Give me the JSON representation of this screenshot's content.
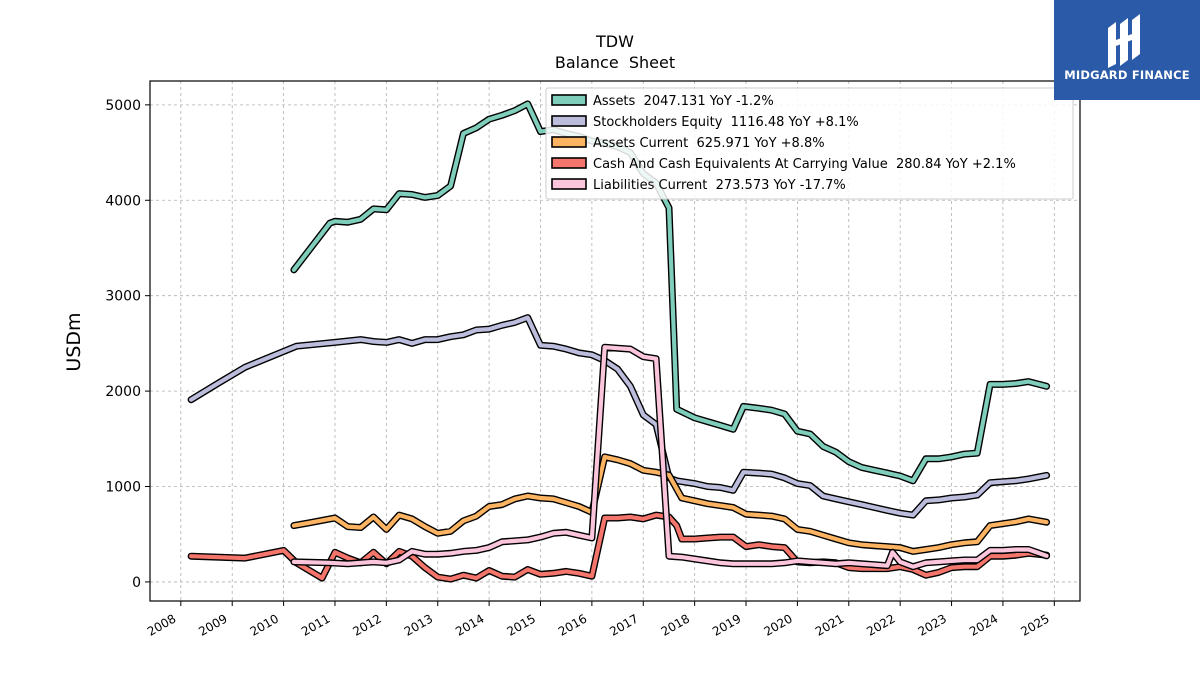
{
  "logo": {
    "text": "MIDGARD FINANCE",
    "color": "#2a5aa8"
  },
  "chart_data": {
    "type": "line",
    "title": "TDW",
    "subtitle": "Balance  Sheet",
    "ylabel": "USDm",
    "xlabel": "",
    "xlim": [
      2007.4,
      2025.5
    ],
    "ylim": [
      -200,
      5250
    ],
    "yticks": [
      0,
      1000,
      2000,
      3000,
      4000,
      5000
    ],
    "xticks": [
      "2008",
      "2009",
      "2010",
      "2011",
      "2012",
      "2013",
      "2014",
      "2015",
      "2016",
      "2017",
      "2018",
      "2019",
      "2020",
      "2021",
      "2022",
      "2023",
      "2024",
      "2025"
    ],
    "grid": true,
    "legend_position": "top-right",
    "series": [
      {
        "name": "Assets",
        "legend": "Assets  2047.131 YoY -1.2%",
        "color": "#7fcdbb",
        "points": [
          [
            2010.2,
            3270
          ],
          [
            2010.9,
            3760
          ],
          [
            2011.0,
            3780
          ],
          [
            2011.25,
            3770
          ],
          [
            2011.5,
            3800
          ],
          [
            2011.75,
            3910
          ],
          [
            2012.0,
            3900
          ],
          [
            2012.25,
            4070
          ],
          [
            2012.5,
            4060
          ],
          [
            2012.75,
            4030
          ],
          [
            2013.0,
            4050
          ],
          [
            2013.25,
            4150
          ],
          [
            2013.5,
            4700
          ],
          [
            2013.75,
            4760
          ],
          [
            2014.0,
            4850
          ],
          [
            2014.25,
            4890
          ],
          [
            2014.5,
            4940
          ],
          [
            2014.75,
            5010
          ],
          [
            2015.0,
            4720
          ],
          [
            2015.25,
            4740
          ],
          [
            2015.5,
            4700
          ],
          [
            2015.75,
            4670
          ],
          [
            2016.0,
            4620
          ],
          [
            2016.25,
            4600
          ],
          [
            2016.5,
            4560
          ],
          [
            2016.75,
            4500
          ],
          [
            2017.0,
            4280
          ],
          [
            2017.25,
            4180
          ],
          [
            2017.5,
            3920
          ],
          [
            2017.65,
            1810
          ],
          [
            2018.0,
            1720
          ],
          [
            2018.25,
            1680
          ],
          [
            2018.5,
            1640
          ],
          [
            2018.75,
            1600
          ],
          [
            2018.95,
            1840
          ],
          [
            2019.25,
            1820
          ],
          [
            2019.5,
            1800
          ],
          [
            2019.75,
            1760
          ],
          [
            2020.0,
            1580
          ],
          [
            2020.25,
            1550
          ],
          [
            2020.5,
            1420
          ],
          [
            2020.75,
            1360
          ],
          [
            2021.0,
            1260
          ],
          [
            2021.25,
            1200
          ],
          [
            2021.5,
            1170
          ],
          [
            2021.75,
            1140
          ],
          [
            2022.0,
            1110
          ],
          [
            2022.25,
            1060
          ],
          [
            2022.5,
            1290
          ],
          [
            2022.75,
            1290
          ],
          [
            2023.0,
            1310
          ],
          [
            2023.25,
            1340
          ],
          [
            2023.5,
            1350
          ],
          [
            2023.75,
            2070
          ],
          [
            2024.0,
            2070
          ],
          [
            2024.25,
            2080
          ],
          [
            2024.5,
            2100
          ],
          [
            2024.85,
            2050
          ]
        ]
      },
      {
        "name": "Stockholders Equity",
        "legend": "Stockholders Equity  1116.48 YoY +8.1%",
        "color": "#bcbddc",
        "points": [
          [
            2008.2,
            1910
          ],
          [
            2008.75,
            2090
          ],
          [
            2009.25,
            2250
          ],
          [
            2010.25,
            2470
          ],
          [
            2011.0,
            2510
          ],
          [
            2011.5,
            2540
          ],
          [
            2011.75,
            2520
          ],
          [
            2012.0,
            2510
          ],
          [
            2012.25,
            2540
          ],
          [
            2012.5,
            2500
          ],
          [
            2012.75,
            2540
          ],
          [
            2013.0,
            2540
          ],
          [
            2013.25,
            2570
          ],
          [
            2013.5,
            2590
          ],
          [
            2013.75,
            2640
          ],
          [
            2014.0,
            2650
          ],
          [
            2014.25,
            2690
          ],
          [
            2014.5,
            2720
          ],
          [
            2014.75,
            2770
          ],
          [
            2015.0,
            2480
          ],
          [
            2015.25,
            2470
          ],
          [
            2015.5,
            2440
          ],
          [
            2015.75,
            2400
          ],
          [
            2016.0,
            2380
          ],
          [
            2016.25,
            2320
          ],
          [
            2016.5,
            2230
          ],
          [
            2016.75,
            2050
          ],
          [
            2017.0,
            1750
          ],
          [
            2017.25,
            1650
          ],
          [
            2017.5,
            1090
          ],
          [
            2017.65,
            1060
          ],
          [
            2018.0,
            1030
          ],
          [
            2018.25,
            1000
          ],
          [
            2018.5,
            990
          ],
          [
            2018.75,
            960
          ],
          [
            2018.95,
            1150
          ],
          [
            2019.25,
            1140
          ],
          [
            2019.5,
            1130
          ],
          [
            2019.75,
            1090
          ],
          [
            2020.0,
            1030
          ],
          [
            2020.25,
            1010
          ],
          [
            2020.5,
            900
          ],
          [
            2020.75,
            870
          ],
          [
            2021.0,
            840
          ],
          [
            2021.25,
            810
          ],
          [
            2021.5,
            780
          ],
          [
            2021.75,
            750
          ],
          [
            2022.0,
            720
          ],
          [
            2022.25,
            700
          ],
          [
            2022.5,
            850
          ],
          [
            2022.75,
            860
          ],
          [
            2023.0,
            880
          ],
          [
            2023.25,
            890
          ],
          [
            2023.5,
            910
          ],
          [
            2023.75,
            1040
          ],
          [
            2024.0,
            1050
          ],
          [
            2024.25,
            1060
          ],
          [
            2024.5,
            1080
          ],
          [
            2024.85,
            1116
          ]
        ]
      },
      {
        "name": "Assets Current",
        "legend": "Assets Current  625.971 YoY +8.8%",
        "color": "#fdb462",
        "points": [
          [
            2010.2,
            590
          ],
          [
            2010.5,
            620
          ],
          [
            2010.9,
            660
          ],
          [
            2011.0,
            670
          ],
          [
            2011.25,
            580
          ],
          [
            2011.5,
            570
          ],
          [
            2011.75,
            680
          ],
          [
            2012.0,
            550
          ],
          [
            2012.25,
            700
          ],
          [
            2012.5,
            660
          ],
          [
            2012.75,
            580
          ],
          [
            2013.0,
            510
          ],
          [
            2013.25,
            530
          ],
          [
            2013.5,
            640
          ],
          [
            2013.75,
            690
          ],
          [
            2014.0,
            790
          ],
          [
            2014.25,
            810
          ],
          [
            2014.5,
            870
          ],
          [
            2014.75,
            900
          ],
          [
            2015.0,
            880
          ],
          [
            2015.25,
            870
          ],
          [
            2015.5,
            830
          ],
          [
            2015.75,
            790
          ],
          [
            2016.0,
            730
          ],
          [
            2016.25,
            1310
          ],
          [
            2016.5,
            1280
          ],
          [
            2016.75,
            1240
          ],
          [
            2017.0,
            1170
          ],
          [
            2017.25,
            1150
          ],
          [
            2017.5,
            1120
          ],
          [
            2017.75,
            880
          ],
          [
            2018.0,
            850
          ],
          [
            2018.25,
            820
          ],
          [
            2018.5,
            800
          ],
          [
            2018.75,
            780
          ],
          [
            2019.0,
            710
          ],
          [
            2019.25,
            700
          ],
          [
            2019.5,
            690
          ],
          [
            2019.75,
            660
          ],
          [
            2020.0,
            550
          ],
          [
            2020.25,
            530
          ],
          [
            2020.5,
            490
          ],
          [
            2020.75,
            450
          ],
          [
            2021.0,
            410
          ],
          [
            2021.25,
            390
          ],
          [
            2021.5,
            380
          ],
          [
            2021.75,
            370
          ],
          [
            2022.0,
            360
          ],
          [
            2022.25,
            320
          ],
          [
            2022.5,
            340
          ],
          [
            2022.75,
            360
          ],
          [
            2023.0,
            390
          ],
          [
            2023.25,
            410
          ],
          [
            2023.5,
            420
          ],
          [
            2023.75,
            590
          ],
          [
            2024.0,
            610
          ],
          [
            2024.25,
            630
          ],
          [
            2024.5,
            660
          ],
          [
            2024.85,
            626
          ]
        ]
      },
      {
        "name": "Cash And Cash Equivalents At Carrying Value",
        "legend": "Cash And Cash Equivalents At Carrying Value  280.84 YoY +2.1%",
        "color": "#f4756b",
        "points": [
          [
            2008.2,
            270
          ],
          [
            2009.25,
            250
          ],
          [
            2010.0,
            330
          ],
          [
            2010.25,
            200
          ],
          [
            2010.75,
            40
          ],
          [
            2011.0,
            310
          ],
          [
            2011.25,
            250
          ],
          [
            2011.5,
            200
          ],
          [
            2011.75,
            310
          ],
          [
            2012.0,
            190
          ],
          [
            2012.25,
            320
          ],
          [
            2012.5,
            270
          ],
          [
            2012.75,
            150
          ],
          [
            2013.0,
            50
          ],
          [
            2013.25,
            30
          ],
          [
            2013.5,
            70
          ],
          [
            2013.75,
            40
          ],
          [
            2014.0,
            120
          ],
          [
            2014.25,
            60
          ],
          [
            2014.5,
            50
          ],
          [
            2014.75,
            130
          ],
          [
            2015.0,
            80
          ],
          [
            2015.25,
            90
          ],
          [
            2015.5,
            110
          ],
          [
            2015.75,
            90
          ],
          [
            2016.0,
            60
          ],
          [
            2016.25,
            670
          ],
          [
            2016.5,
            670
          ],
          [
            2016.75,
            680
          ],
          [
            2017.0,
            660
          ],
          [
            2017.25,
            700
          ],
          [
            2017.5,
            680
          ],
          [
            2017.65,
            590
          ],
          [
            2017.75,
            450
          ],
          [
            2018.0,
            450
          ],
          [
            2018.25,
            460
          ],
          [
            2018.5,
            470
          ],
          [
            2018.75,
            470
          ],
          [
            2019.0,
            370
          ],
          [
            2019.25,
            390
          ],
          [
            2019.5,
            370
          ],
          [
            2019.75,
            360
          ],
          [
            2020.0,
            210
          ],
          [
            2020.25,
            200
          ],
          [
            2020.5,
            210
          ],
          [
            2020.75,
            200
          ],
          [
            2021.0,
            150
          ],
          [
            2021.25,
            140
          ],
          [
            2021.5,
            140
          ],
          [
            2021.75,
            140
          ],
          [
            2022.0,
            160
          ],
          [
            2022.25,
            130
          ],
          [
            2022.5,
            70
          ],
          [
            2022.75,
            100
          ],
          [
            2023.0,
            150
          ],
          [
            2023.25,
            160
          ],
          [
            2023.5,
            160
          ],
          [
            2023.75,
            270
          ],
          [
            2024.0,
            270
          ],
          [
            2024.25,
            280
          ],
          [
            2024.5,
            300
          ],
          [
            2024.85,
            281
          ]
        ]
      },
      {
        "name": "Liabilities Current",
        "legend": "Liabilities Current  273.573 YoY -17.7%",
        "color": "#fbc5dc",
        "points": [
          [
            2010.2,
            210
          ],
          [
            2010.9,
            200
          ],
          [
            2011.25,
            190
          ],
          [
            2011.5,
            200
          ],
          [
            2011.75,
            210
          ],
          [
            2012.0,
            200
          ],
          [
            2012.25,
            230
          ],
          [
            2012.5,
            320
          ],
          [
            2012.75,
            290
          ],
          [
            2013.0,
            290
          ],
          [
            2013.25,
            300
          ],
          [
            2013.5,
            320
          ],
          [
            2013.75,
            330
          ],
          [
            2014.0,
            360
          ],
          [
            2014.25,
            420
          ],
          [
            2014.5,
            430
          ],
          [
            2014.75,
            440
          ],
          [
            2015.0,
            470
          ],
          [
            2015.25,
            510
          ],
          [
            2015.5,
            520
          ],
          [
            2015.75,
            490
          ],
          [
            2016.0,
            460
          ],
          [
            2016.25,
            2460
          ],
          [
            2016.5,
            2450
          ],
          [
            2016.75,
            2440
          ],
          [
            2017.0,
            2360
          ],
          [
            2017.25,
            2340
          ],
          [
            2017.5,
            270
          ],
          [
            2017.75,
            260
          ],
          [
            2018.0,
            240
          ],
          [
            2018.25,
            220
          ],
          [
            2018.5,
            200
          ],
          [
            2018.75,
            190
          ],
          [
            2019.0,
            190
          ],
          [
            2019.25,
            190
          ],
          [
            2019.5,
            190
          ],
          [
            2019.75,
            200
          ],
          [
            2020.0,
            220
          ],
          [
            2020.25,
            210
          ],
          [
            2020.5,
            200
          ],
          [
            2020.75,
            190
          ],
          [
            2021.0,
            200
          ],
          [
            2021.25,
            190
          ],
          [
            2021.5,
            180
          ],
          [
            2021.75,
            170
          ],
          [
            2021.85,
            310
          ],
          [
            2022.0,
            210
          ],
          [
            2022.25,
            160
          ],
          [
            2022.5,
            200
          ],
          [
            2022.75,
            210
          ],
          [
            2023.0,
            220
          ],
          [
            2023.25,
            230
          ],
          [
            2023.5,
            230
          ],
          [
            2023.75,
            330
          ],
          [
            2024.0,
            330
          ],
          [
            2024.25,
            340
          ],
          [
            2024.5,
            340
          ],
          [
            2024.85,
            274
          ]
        ]
      }
    ]
  }
}
